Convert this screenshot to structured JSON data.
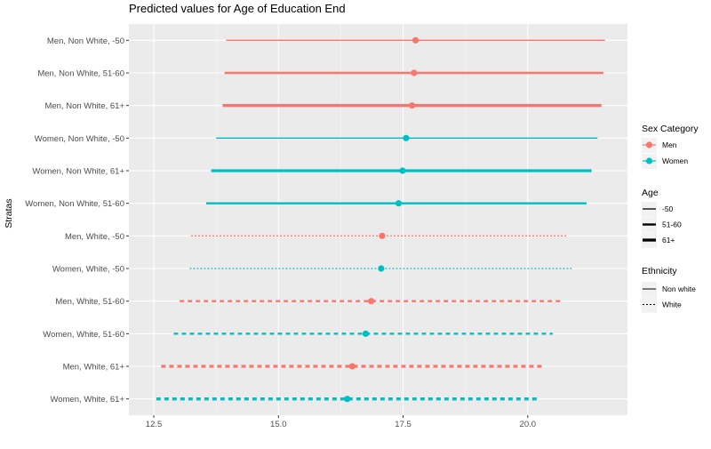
{
  "chart_data": {
    "type": "scatter",
    "title": "Predicted values for Age of Education End",
    "ylabel": "Stratas",
    "xlabel": "",
    "xlim": [
      12.0,
      22.0
    ],
    "xticks": [
      12.5,
      15.0,
      17.5,
      20.0
    ],
    "xtick_labels": [
      "12.5",
      "15.0",
      "17.5",
      "20.0"
    ],
    "grid": true,
    "legend_position": "right",
    "colors": {
      "Men": "#F8766D",
      "Women": "#00BFC4"
    },
    "categories": [
      "Men, Non White, -50",
      "Men, Non White, 51-60",
      "Men, Non White, 61+",
      "Women, Non White, -50",
      "Women, Non White, 61+",
      "Women, Non White, 51-60",
      "Men, White, -50",
      "Women, White, -50",
      "Men, White, 51-60",
      "Women, White, 51-60",
      "Men, White, 61+",
      "Women, White, 61+"
    ],
    "points": [
      {
        "label": "Men, Non White, -50",
        "sex": "Men",
        "age": "-50",
        "ethnicity": "Non White",
        "estimate": 17.75,
        "low": 13.95,
        "high": 21.55
      },
      {
        "label": "Men, Non White, 51-60",
        "sex": "Men",
        "age": "51-60",
        "ethnicity": "Non White",
        "estimate": 17.72,
        "low": 13.92,
        "high": 21.52
      },
      {
        "label": "Men, Non White, 61+",
        "sex": "Men",
        "age": "61+",
        "ethnicity": "Non White",
        "estimate": 17.68,
        "low": 13.88,
        "high": 21.48
      },
      {
        "label": "Women, Non White, -50",
        "sex": "Women",
        "age": "-50",
        "ethnicity": "Non White",
        "estimate": 17.56,
        "low": 13.75,
        "high": 21.4
      },
      {
        "label": "Women, Non White, 61+",
        "sex": "Women",
        "age": "61+",
        "ethnicity": "Non White",
        "estimate": 17.49,
        "low": 13.65,
        "high": 21.28
      },
      {
        "label": "Women, Non White, 51-60",
        "sex": "Women",
        "age": "51-60",
        "ethnicity": "Non White",
        "estimate": 17.41,
        "low": 13.55,
        "high": 21.18
      },
      {
        "label": "Men, White, -50",
        "sex": "Men",
        "age": "-50",
        "ethnicity": "White",
        "estimate": 17.08,
        "low": 13.25,
        "high": 20.8
      },
      {
        "label": "Women, White, -50",
        "sex": "Women",
        "age": "-50",
        "ethnicity": "White",
        "estimate": 17.06,
        "low": 13.22,
        "high": 20.88
      },
      {
        "label": "Men, White, 51-60",
        "sex": "Men",
        "age": "51-60",
        "ethnicity": "White",
        "estimate": 16.86,
        "low": 13.02,
        "high": 20.68
      },
      {
        "label": "Women, White, 51-60",
        "sex": "Women",
        "age": "51-60",
        "ethnicity": "White",
        "estimate": 16.75,
        "low": 12.9,
        "high": 20.5
      },
      {
        "label": "Men, White, 61+",
        "sex": "Men",
        "age": "61+",
        "ethnicity": "White",
        "estimate": 16.48,
        "low": 12.65,
        "high": 20.3
      },
      {
        "label": "Women, White, 61+",
        "sex": "Women",
        "age": "61+",
        "ethnicity": "White",
        "estimate": 16.38,
        "low": 12.55,
        "high": 20.2
      }
    ],
    "legend": {
      "sex_title": "Sex Category",
      "sex_items": [
        "Men",
        "Women"
      ],
      "age_title": "Age",
      "age_items": [
        "-50",
        "51-60",
        "61+"
      ],
      "ethnicity_title": "Ethnicity",
      "ethnicity_items": [
        "Non white",
        "White"
      ]
    }
  }
}
